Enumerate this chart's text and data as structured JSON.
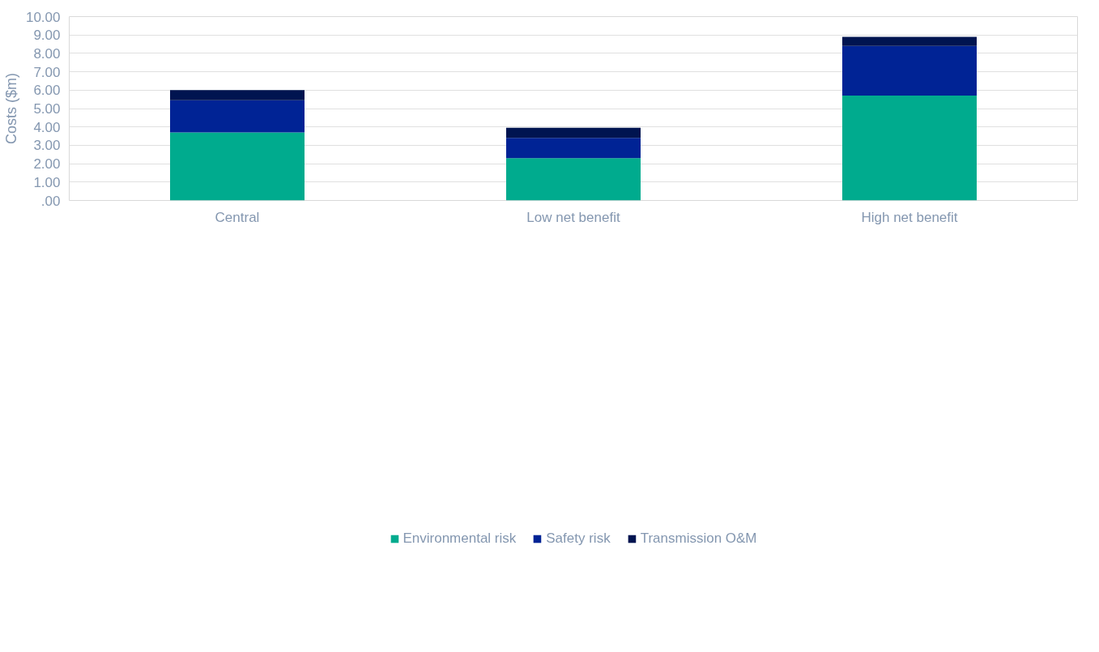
{
  "chart_data": {
    "type": "bar",
    "stacked": true,
    "ylabel": "Costs ($m)",
    "categories": [
      "Central",
      "Low net benefit",
      "High net benefit"
    ],
    "series": [
      {
        "name": "Environmental risk",
        "color": "#00ab8e",
        "values": [
          3.7,
          2.3,
          5.7
        ]
      },
      {
        "name": "Safety risk",
        "color": "#002395",
        "values": [
          1.75,
          1.1,
          2.7
        ]
      },
      {
        "name": "Transmission O&M",
        "color": "#001450",
        "values": [
          0.55,
          0.55,
          0.5
        ]
      }
    ],
    "ylim": [
      0,
      10
    ],
    "yticks": [
      {
        "value": 0,
        "label": ".00"
      },
      {
        "value": 1,
        "label": "1.00"
      },
      {
        "value": 2,
        "label": "2.00"
      },
      {
        "value": 3,
        "label": "3.00"
      },
      {
        "value": 4,
        "label": "4.00"
      },
      {
        "value": 5,
        "label": "5.00"
      },
      {
        "value": 6,
        "label": "6.00"
      },
      {
        "value": 7,
        "label": "7.00"
      },
      {
        "value": 8,
        "label": "8.00"
      },
      {
        "value": 9,
        "label": "9.00"
      },
      {
        "value": 10,
        "label": "10.00"
      }
    ],
    "grid": "y",
    "legend": "bottom"
  }
}
